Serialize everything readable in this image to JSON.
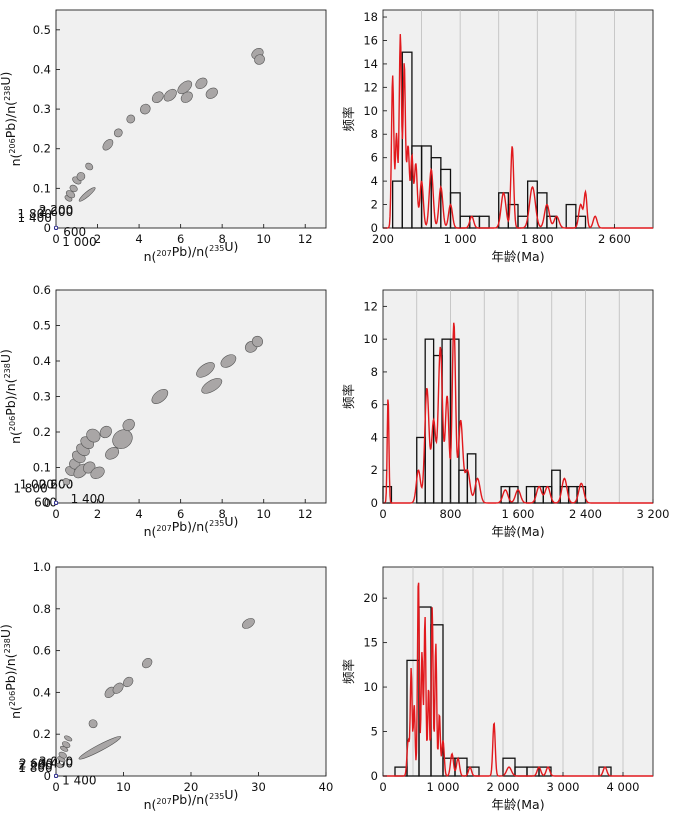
{
  "colors": {
    "panel_bg": "#f0f0f0",
    "concordia": "#2b2b8c",
    "ellipse_fill": "#a9a6a6",
    "ellipse_stroke": "#555555",
    "kde": "#e1191d",
    "bars": "#111111",
    "grid": "#bdbdbd"
  },
  "chart_data": [
    {
      "type": "scatter",
      "subtype": "concordia",
      "xlabel": "n(207Pb)/n(235U)",
      "ylabel": "n(206Pb)/n(238U)",
      "xlim": [
        0,
        13
      ],
      "ylim": [
        0,
        0.55
      ],
      "xticks": [
        0,
        2,
        4,
        6,
        8,
        10,
        12
      ],
      "xtick_labels": [
        "0",
        "2",
        "4",
        "6",
        "8",
        "10",
        "12"
      ],
      "yticks": [
        0,
        0.1,
        0.2,
        0.3,
        0.4,
        0.5
      ],
      "ytick_labels": [
        "0",
        "0.1",
        "0.2",
        "0.3",
        "0.4",
        "0.5"
      ],
      "curve_max_ma": 2780,
      "age_labels": [
        {
          "age": 600,
          "text": "600",
          "anchor": "start",
          "dx": 0.35,
          "dy": -0.02
        },
        {
          "age": 1000,
          "text": "1 000",
          "anchor": "start",
          "dx": 0.3,
          "dy": -0.045
        },
        {
          "age": 1400,
          "text": "1 400",
          "anchor": "end",
          "dx": -0.2,
          "dy": 0.015
        },
        {
          "age": 1800,
          "text": "1 800",
          "anchor": "end",
          "dx": -0.2,
          "dy": 0.025
        },
        {
          "age": 2200,
          "text": "2 200",
          "anchor": "middle",
          "dx": 0,
          "dy": 0.035
        },
        {
          "age": 2600,
          "text": "2 600",
          "anchor": "middle",
          "dx": 0,
          "dy": 0.03
        }
      ],
      "ellipses": [
        {
          "x": 0.6,
          "y": 0.075,
          "rx": 0.12,
          "ry": 0.01
        },
        {
          "x": 0.7,
          "y": 0.085,
          "rx": 0.15,
          "ry": 0.012
        },
        {
          "x": 0.85,
          "y": 0.1,
          "rx": 0.15,
          "ry": 0.01
        },
        {
          "x": 1.0,
          "y": 0.12,
          "rx": 0.15,
          "ry": 0.012
        },
        {
          "x": 1.2,
          "y": 0.13,
          "rx": 0.2,
          "ry": 0.01
        },
        {
          "x": 1.5,
          "y": 0.085,
          "rx": 0.5,
          "ry": 0.006
        },
        {
          "x": 1.6,
          "y": 0.155,
          "rx": 0.15,
          "ry": 0.01
        },
        {
          "x": 2.5,
          "y": 0.21,
          "rx": 0.3,
          "ry": 0.01
        },
        {
          "x": 3.0,
          "y": 0.24,
          "rx": 0.2,
          "ry": 0.01
        },
        {
          "x": 3.6,
          "y": 0.275,
          "rx": 0.2,
          "ry": 0.01
        },
        {
          "x": 4.3,
          "y": 0.3,
          "rx": 0.25,
          "ry": 0.012
        },
        {
          "x": 4.9,
          "y": 0.33,
          "rx": 0.3,
          "ry": 0.012
        },
        {
          "x": 5.5,
          "y": 0.335,
          "rx": 0.35,
          "ry": 0.012
        },
        {
          "x": 6.2,
          "y": 0.355,
          "rx": 0.4,
          "ry": 0.012
        },
        {
          "x": 6.3,
          "y": 0.33,
          "rx": 0.3,
          "ry": 0.012
        },
        {
          "x": 7.0,
          "y": 0.365,
          "rx": 0.3,
          "ry": 0.012
        },
        {
          "x": 7.5,
          "y": 0.34,
          "rx": 0.3,
          "ry": 0.012
        },
        {
          "x": 9.7,
          "y": 0.44,
          "rx": 0.3,
          "ry": 0.012
        },
        {
          "x": 9.8,
          "y": 0.425,
          "rx": 0.25,
          "ry": 0.012
        }
      ]
    },
    {
      "type": "bar",
      "subtype": "histogram_kde",
      "xlabel": "年龄(Ma)",
      "ylabel": "频率",
      "xlim": [
        200,
        3000
      ],
      "ylim": [
        0,
        18.6
      ],
      "xticks": [
        200,
        1000,
        1800,
        2600
      ],
      "xtick_labels": [
        "200",
        "1 000",
        "1 800",
        "2 600"
      ],
      "yticks": [
        0,
        2,
        4,
        6,
        8,
        10,
        12,
        14,
        16,
        18
      ],
      "ytick_labels": [
        "0",
        "2",
        "4",
        "6",
        "8",
        "10",
        "12",
        "14",
        "16",
        "18"
      ],
      "grid_x": [
        200,
        600,
        1000,
        1400,
        1800,
        2200,
        2600,
        3000
      ],
      "bar_width": 100,
      "bins_start": [
        200,
        300,
        400,
        500,
        600,
        700,
        800,
        900,
        1000,
        1100,
        1200,
        1300,
        1400,
        1500,
        1600,
        1700,
        1800,
        1900,
        2000,
        2100,
        2200,
        2300,
        2400
      ],
      "values": [
        0,
        4,
        15,
        7,
        7,
        6,
        5,
        3,
        1,
        1,
        1,
        0,
        3,
        2,
        1,
        4,
        3,
        1,
        0,
        2,
        1,
        0,
        0
      ],
      "kde_peaks": [
        {
          "x": 300,
          "h": 13,
          "s": 12
        },
        {
          "x": 340,
          "h": 8,
          "s": 12
        },
        {
          "x": 380,
          "h": 16.5,
          "s": 12
        },
        {
          "x": 420,
          "h": 14,
          "s": 12
        },
        {
          "x": 460,
          "h": 7,
          "s": 14
        },
        {
          "x": 500,
          "h": 6,
          "s": 12
        },
        {
          "x": 540,
          "h": 5.5,
          "s": 15
        },
        {
          "x": 600,
          "h": 4,
          "s": 18
        },
        {
          "x": 700,
          "h": 5,
          "s": 20
        },
        {
          "x": 800,
          "h": 3.5,
          "s": 20
        },
        {
          "x": 900,
          "h": 2,
          "s": 20
        },
        {
          "x": 1120,
          "h": 1,
          "s": 20
        },
        {
          "x": 1450,
          "h": 3,
          "s": 25
        },
        {
          "x": 1540,
          "h": 7,
          "s": 15
        },
        {
          "x": 1750,
          "h": 3.5,
          "s": 30
        },
        {
          "x": 1900,
          "h": 2,
          "s": 25
        },
        {
          "x": 2000,
          "h": 1,
          "s": 25
        },
        {
          "x": 2250,
          "h": 2,
          "s": 20
        },
        {
          "x": 2300,
          "h": 3,
          "s": 15
        },
        {
          "x": 2400,
          "h": 1,
          "s": 20
        }
      ]
    },
    {
      "type": "scatter",
      "subtype": "concordia",
      "xlabel": "n(207Pb)/n(235U)",
      "ylabel": "n(206Pb)/n(238U)",
      "xlim": [
        0,
        13
      ],
      "ylim": [
        0,
        0.6
      ],
      "xticks": [
        0,
        2,
        4,
        6,
        8,
        10,
        12
      ],
      "xtick_labels": [
        "0",
        "2",
        "4",
        "6",
        "8",
        "10",
        "12"
      ],
      "yticks": [
        0,
        0.1,
        0.2,
        0.3,
        0.4,
        0.5,
        0.6
      ],
      "ytick_labels": [
        "0",
        "0.1",
        "0.2",
        "0.3",
        "0.4",
        "0.5",
        "0.6"
      ],
      "curve_max_ma": 2780,
      "age_labels": [
        {
          "age": 600,
          "text": "600",
          "anchor": "end",
          "dx": 0.05,
          "dy": -0.01
        },
        {
          "age": 1000,
          "text": "1 000",
          "anchor": "end",
          "dx": -0.1,
          "dy": 0.04
        },
        {
          "age": 1400,
          "text": "1 400",
          "anchor": "start",
          "dx": 0.7,
          "dy": -0.0
        },
        {
          "age": 1800,
          "text": "1 800",
          "anchor": "end",
          "dx": -0.4,
          "dy": 0.03
        },
        {
          "age": 2200,
          "text": "2 200",
          "anchor": "middle",
          "dx": 0,
          "dy": 0.04
        },
        {
          "age": 2600,
          "text": "2 600",
          "anchor": "middle",
          "dx": 0,
          "dy": 0.04
        }
      ],
      "ellipses": [
        {
          "x": 0.5,
          "y": 0.06,
          "rx": 0.15,
          "ry": 0.01
        },
        {
          "x": 0.7,
          "y": 0.09,
          "rx": 0.2,
          "ry": 0.015
        },
        {
          "x": 0.9,
          "y": 0.11,
          "rx": 0.25,
          "ry": 0.015
        },
        {
          "x": 1.1,
          "y": 0.13,
          "rx": 0.25,
          "ry": 0.02
        },
        {
          "x": 1.3,
          "y": 0.15,
          "rx": 0.25,
          "ry": 0.02
        },
        {
          "x": 1.5,
          "y": 0.17,
          "rx": 0.25,
          "ry": 0.02
        },
        {
          "x": 1.8,
          "y": 0.19,
          "rx": 0.3,
          "ry": 0.02
        },
        {
          "x": 1.2,
          "y": 0.09,
          "rx": 0.4,
          "ry": 0.015
        },
        {
          "x": 1.6,
          "y": 0.1,
          "rx": 0.3,
          "ry": 0.015
        },
        {
          "x": 2.0,
          "y": 0.085,
          "rx": 0.35,
          "ry": 0.015
        },
        {
          "x": 2.4,
          "y": 0.2,
          "rx": 0.3,
          "ry": 0.015
        },
        {
          "x": 3.2,
          "y": 0.18,
          "rx": 0.5,
          "ry": 0.025
        },
        {
          "x": 2.7,
          "y": 0.14,
          "rx": 0.35,
          "ry": 0.015
        },
        {
          "x": 3.5,
          "y": 0.22,
          "rx": 0.3,
          "ry": 0.015
        },
        {
          "x": 5.0,
          "y": 0.3,
          "rx": 0.45,
          "ry": 0.015
        },
        {
          "x": 7.2,
          "y": 0.375,
          "rx": 0.5,
          "ry": 0.015
        },
        {
          "x": 7.5,
          "y": 0.33,
          "rx": 0.55,
          "ry": 0.015
        },
        {
          "x": 8.3,
          "y": 0.4,
          "rx": 0.4,
          "ry": 0.015
        },
        {
          "x": 9.4,
          "y": 0.44,
          "rx": 0.3,
          "ry": 0.015
        },
        {
          "x": 9.7,
          "y": 0.455,
          "rx": 0.25,
          "ry": 0.015
        }
      ]
    },
    {
      "type": "bar",
      "subtype": "histogram_kde",
      "xlabel": "年龄(Ma)",
      "ylabel": "频率",
      "xlim": [
        0,
        3200
      ],
      "ylim": [
        0,
        13
      ],
      "xticks": [
        0,
        800,
        1600,
        2400,
        3200
      ],
      "xtick_labels": [
        "0",
        "800",
        "1 600",
        "2 400",
        "3 200"
      ],
      "yticks": [
        0,
        2,
        4,
        6,
        8,
        10,
        12
      ],
      "ytick_labels": [
        "0",
        "2",
        "4",
        "6",
        "8",
        "10",
        "12"
      ],
      "grid_x": [
        0,
        400,
        800,
        1200,
        1600,
        2000,
        2400,
        2800,
        3200
      ],
      "bar_width": 100,
      "bins_start": [
        0,
        100,
        200,
        300,
        400,
        500,
        600,
        700,
        800,
        900,
        1000,
        1100,
        1200,
        1300,
        1400,
        1500,
        1600,
        1700,
        1800,
        1900,
        2000,
        2100,
        2200,
        2300,
        2400,
        2500
      ],
      "values": [
        1,
        0,
        0,
        0,
        4,
        10,
        9,
        10,
        10,
        2,
        3,
        0,
        0,
        0,
        1,
        1,
        0,
        1,
        1,
        1,
        2,
        1,
        1,
        1,
        0,
        0
      ],
      "kde_peaks": [
        {
          "x": 60,
          "h": 6.5,
          "s": 10
        },
        {
          "x": 420,
          "h": 2,
          "s": 25
        },
        {
          "x": 520,
          "h": 7,
          "s": 25
        },
        {
          "x": 600,
          "h": 5,
          "s": 25
        },
        {
          "x": 680,
          "h": 9.5,
          "s": 25
        },
        {
          "x": 760,
          "h": 6.5,
          "s": 22
        },
        {
          "x": 840,
          "h": 11,
          "s": 20
        },
        {
          "x": 920,
          "h": 5,
          "s": 25
        },
        {
          "x": 1000,
          "h": 2,
          "s": 30
        },
        {
          "x": 1120,
          "h": 1.5,
          "s": 30
        },
        {
          "x": 1450,
          "h": 0.8,
          "s": 30
        },
        {
          "x": 1600,
          "h": 0.8,
          "s": 30
        },
        {
          "x": 1850,
          "h": 1,
          "s": 30
        },
        {
          "x": 1950,
          "h": 1,
          "s": 30
        },
        {
          "x": 2150,
          "h": 1.5,
          "s": 30
        },
        {
          "x": 2350,
          "h": 1.2,
          "s": 30
        }
      ]
    },
    {
      "type": "scatter",
      "subtype": "concordia",
      "xlabel": "n(207Pb)/n(235U)",
      "ylabel": "n(206Pb)/n(238U)",
      "xlim": [
        0,
        40
      ],
      "ylim": [
        0,
        1.0
      ],
      "xticks": [
        0,
        10,
        20,
        30,
        40
      ],
      "xtick_labels": [
        "0",
        "10",
        "20",
        "30",
        "40"
      ],
      "yticks": [
        0,
        0.2,
        0.4,
        0.6,
        0.8,
        1.0
      ],
      "ytick_labels": [
        "0",
        "0.2",
        "0.4",
        "0.6",
        "0.8",
        "1.0"
      ],
      "curve_max_ma": 3950,
      "age_labels": [
        {
          "age": 1400,
          "text": "1 400",
          "anchor": "end",
          "dx": 6.0,
          "dy": -0.04
        },
        {
          "age": 1800,
          "text": "1 800",
          "anchor": "end",
          "dx": -0.5,
          "dy": 0.02
        },
        {
          "age": 2200,
          "text": "2 200",
          "anchor": "end",
          "dx": -0.5,
          "dy": 0.03
        },
        {
          "age": 2600,
          "text": "2 600",
          "anchor": "end",
          "dx": -0.4,
          "dy": 0.04
        },
        {
          "age": 3000,
          "text": "3 000",
          "anchor": "middle",
          "dx": 0,
          "dy": 0.05
        },
        {
          "age": 3400,
          "text": "3 400",
          "anchor": "middle",
          "dx": 0,
          "dy": 0.04
        }
      ],
      "ellipses": [
        {
          "x": 0.5,
          "y": 0.05,
          "rx": 0.3,
          "ry": 0.015
        },
        {
          "x": 0.8,
          "y": 0.08,
          "rx": 0.3,
          "ry": 0.02
        },
        {
          "x": 1.0,
          "y": 0.1,
          "rx": 0.4,
          "ry": 0.02
        },
        {
          "x": 1.5,
          "y": 0.15,
          "rx": 0.4,
          "ry": 0.02
        },
        {
          "x": 1.2,
          "y": 0.13,
          "rx": 0.3,
          "ry": 0.02
        },
        {
          "x": 1.8,
          "y": 0.18,
          "rx": 0.3,
          "ry": 0.02
        },
        {
          "x": 6.5,
          "y": 0.135,
          "rx": 3.5,
          "ry": 0.015
        },
        {
          "x": 5.5,
          "y": 0.25,
          "rx": 0.6,
          "ry": 0.02
        },
        {
          "x": 8.0,
          "y": 0.4,
          "rx": 0.9,
          "ry": 0.02
        },
        {
          "x": 9.2,
          "y": 0.42,
          "rx": 0.9,
          "ry": 0.02
        },
        {
          "x": 10.7,
          "y": 0.45,
          "rx": 0.8,
          "ry": 0.02
        },
        {
          "x": 13.5,
          "y": 0.54,
          "rx": 0.8,
          "ry": 0.02
        },
        {
          "x": 28.5,
          "y": 0.73,
          "rx": 1.0,
          "ry": 0.02
        }
      ]
    },
    {
      "type": "bar",
      "subtype": "histogram_kde",
      "xlabel": "年龄(Ma)",
      "ylabel": "频率",
      "xlim": [
        0,
        4500
      ],
      "ylim": [
        0,
        23.5
      ],
      "xticks": [
        0,
        1000,
        2000,
        3000,
        4000
      ],
      "xtick_labels": [
        "0",
        "1 000",
        "2 000",
        "3 000",
        "4 000"
      ],
      "yticks": [
        0,
        5,
        10,
        15,
        20
      ],
      "ytick_labels": [
        "0",
        "5",
        "10",
        "15",
        "20"
      ],
      "grid_x": [
        0,
        500,
        1000,
        1500,
        2000,
        2500,
        3000,
        3500,
        4000,
        4500
      ],
      "bar_width": 200,
      "bins_start": [
        200,
        400,
        600,
        800,
        1000,
        1200,
        1400,
        1600,
        1800,
        2000,
        2200,
        2400,
        2600,
        2800,
        3000,
        3200,
        3400,
        3600
      ],
      "values": [
        1,
        13,
        19,
        17,
        2,
        2,
        1,
        0,
        0,
        2,
        1,
        1,
        1,
        0,
        0,
        0,
        0,
        1
      ],
      "kde_peaks": [
        {
          "x": 420,
          "h": 4,
          "s": 20
        },
        {
          "x": 470,
          "h": 12,
          "s": 15
        },
        {
          "x": 520,
          "h": 8,
          "s": 15
        },
        {
          "x": 590,
          "h": 22.5,
          "s": 15
        },
        {
          "x": 650,
          "h": 14,
          "s": 15
        },
        {
          "x": 700,
          "h": 18,
          "s": 15
        },
        {
          "x": 760,
          "h": 10,
          "s": 15
        },
        {
          "x": 820,
          "h": 19,
          "s": 15
        },
        {
          "x": 880,
          "h": 15,
          "s": 15
        },
        {
          "x": 940,
          "h": 7,
          "s": 15
        },
        {
          "x": 1000,
          "h": 4,
          "s": 20
        },
        {
          "x": 1150,
          "h": 2.5,
          "s": 25
        },
        {
          "x": 1250,
          "h": 2,
          "s": 25
        },
        {
          "x": 1450,
          "h": 1,
          "s": 25
        },
        {
          "x": 1850,
          "h": 6,
          "s": 20
        },
        {
          "x": 2100,
          "h": 1,
          "s": 40
        },
        {
          "x": 2600,
          "h": 1,
          "s": 30
        },
        {
          "x": 2750,
          "h": 1,
          "s": 30
        },
        {
          "x": 3700,
          "h": 1,
          "s": 30
        }
      ]
    }
  ]
}
